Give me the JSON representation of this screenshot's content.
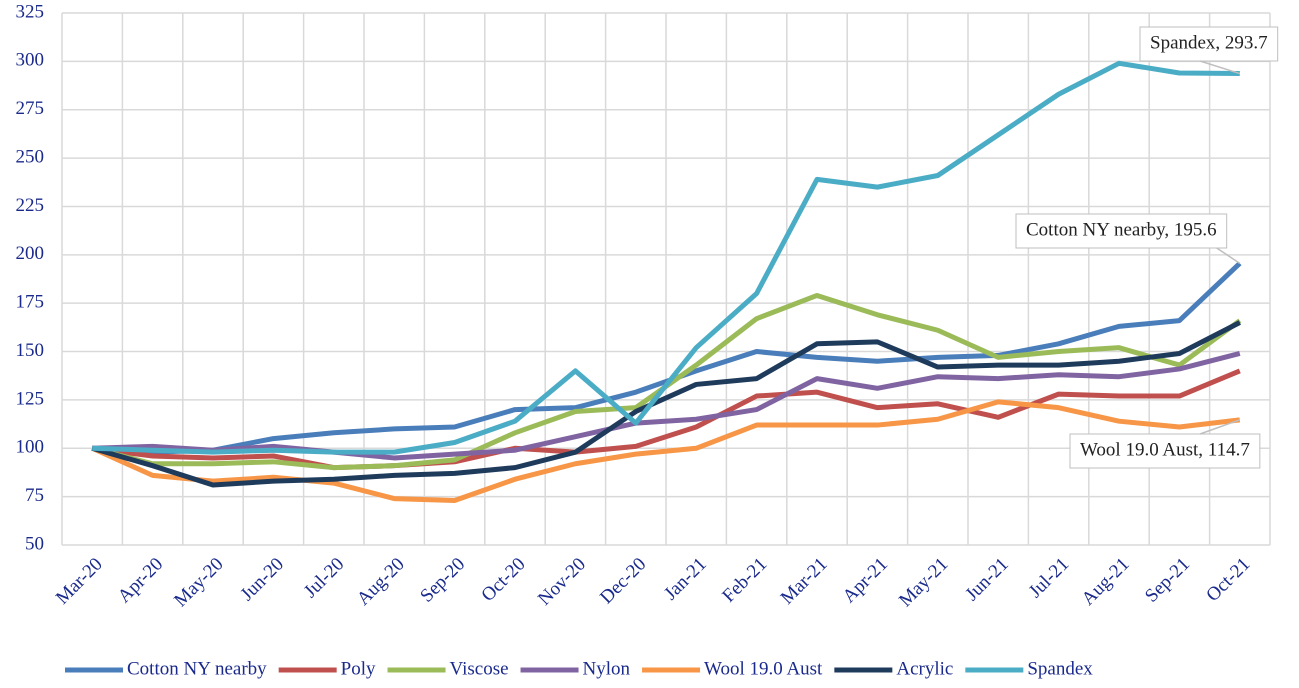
{
  "chart_data": {
    "type": "line",
    "categories": [
      "Mar-20",
      "Apr-20",
      "May-20",
      "Jun-20",
      "Jul-20",
      "Aug-20",
      "Sep-20",
      "Oct-20",
      "Nov-20",
      "Dec-20",
      "Jan-21",
      "Feb-21",
      "Mar-21",
      "Apr-21",
      "May-21",
      "Jun-21",
      "Jul-21",
      "Aug-21",
      "Sep-21",
      "Oct-21"
    ],
    "series": [
      {
        "name": "Cotton NY nearby",
        "color": "#4a7ebb",
        "values": [
          100,
          98,
          99,
          105,
          108,
          110,
          111,
          120,
          121,
          129,
          140,
          150,
          147,
          145,
          147,
          148,
          154,
          163,
          166,
          195.6
        ]
      },
      {
        "name": "Poly",
        "color": "#c0504d",
        "values": [
          100,
          96,
          95,
          96,
          90,
          91,
          93,
          100,
          98,
          101,
          111,
          127,
          129,
          121,
          123,
          116,
          128,
          127,
          127,
          140
        ]
      },
      {
        "name": "Viscose",
        "color": "#9bbb59",
        "values": [
          100,
          92,
          92,
          93,
          90,
          91,
          94,
          108,
          119,
          121,
          143,
          167,
          179,
          169,
          161,
          147,
          150,
          152,
          143,
          166
        ]
      },
      {
        "name": "Nylon",
        "color": "#8064a2",
        "values": [
          100,
          101,
          99,
          101,
          98,
          95,
          97,
          99,
          106,
          113,
          115,
          120,
          136,
          131,
          137,
          136,
          138,
          137,
          141,
          149
        ]
      },
      {
        "name": "Wool 19.0 Aust",
        "color": "#f79646",
        "values": [
          100,
          86,
          83,
          85,
          82,
          74,
          73,
          84,
          92,
          97,
          100,
          112,
          112,
          112,
          115,
          124,
          121,
          114,
          111,
          114.7
        ]
      },
      {
        "name": "Acrylic",
        "color": "#1f3b5c",
        "values": [
          100,
          91,
          81,
          83,
          84,
          86,
          87,
          90,
          98,
          119,
          133,
          136,
          154,
          155,
          142,
          143,
          143,
          145,
          149,
          165
        ]
      },
      {
        "name": "Spandex",
        "color": "#4bacc6",
        "values": [
          100,
          99,
          98,
          99,
          98,
          98,
          103,
          114,
          140,
          113,
          152,
          180,
          239,
          235,
          241,
          262,
          283,
          299,
          294,
          293.7
        ]
      }
    ],
    "annotations": [
      "Spandex, 293.7",
      "Cotton NY nearby, 195.6",
      "Wool 19.0 Aust, 114.7"
    ],
    "ylim": [
      50,
      325
    ],
    "yticks": [
      50,
      75,
      100,
      125,
      150,
      175,
      200,
      225,
      250,
      275,
      300,
      325
    ],
    "grid": true,
    "legend": "bottom"
  }
}
